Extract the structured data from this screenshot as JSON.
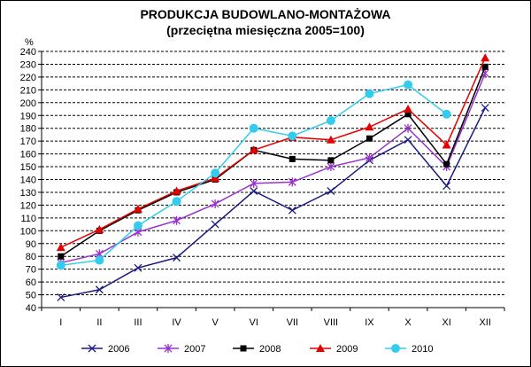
{
  "chart_data": {
    "type": "line",
    "title": "PRODUKCJA BUDOWLANO-MONTAŻOWA",
    "subtitle": "(przeciętna miesięczna 2005=100)",
    "ylabel": "%",
    "xlabel": "",
    "ylim": [
      40,
      240
    ],
    "ytick_step": 10,
    "grid": true,
    "legend_position": "bottom",
    "categories": [
      "I",
      "II",
      "III",
      "IV",
      "V",
      "VI",
      "VII",
      "VIII",
      "IX",
      "X",
      "XI",
      "XII"
    ],
    "series": [
      {
        "name": "2006",
        "color": "#1a1a80",
        "marker": "x",
        "values": [
          48,
          54,
          71,
          79,
          105,
          131,
          116,
          131,
          155,
          171,
          135,
          196
        ]
      },
      {
        "name": "2007",
        "color": "#9933cc",
        "marker": "star",
        "values": [
          75,
          82,
          99,
          108,
          121,
          137,
          138,
          150,
          157,
          180,
          150,
          223
        ]
      },
      {
        "name": "2008",
        "color": "#000000",
        "marker": "square",
        "values": [
          80,
          100,
          116,
          130,
          140,
          163,
          156,
          155,
          172,
          191,
          152,
          228
        ]
      },
      {
        "name": "2009",
        "color": "#e60000",
        "marker": "triangle",
        "values": [
          87,
          101,
          117,
          131,
          141,
          163,
          173,
          171,
          181,
          195,
          167,
          235
        ]
      },
      {
        "name": "2010",
        "color": "#33ccee",
        "marker": "circle",
        "values": [
          73,
          77,
          104,
          123,
          145,
          180,
          174,
          186,
          207,
          214,
          191,
          null
        ]
      }
    ]
  }
}
